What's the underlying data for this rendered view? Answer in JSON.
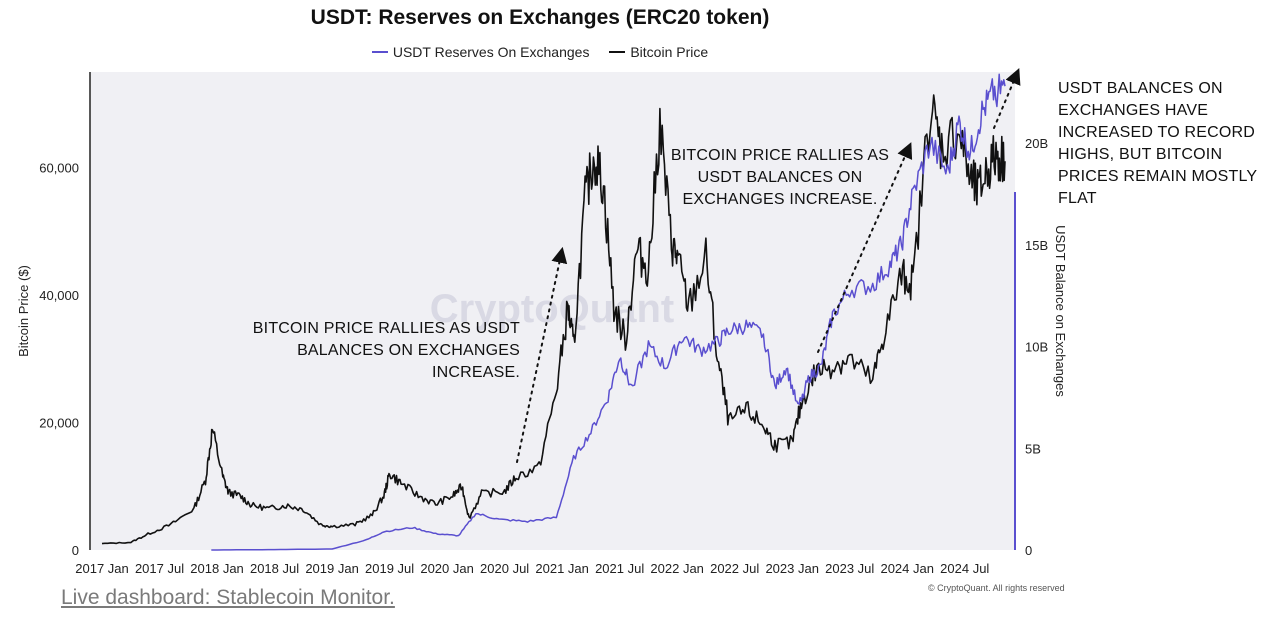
{
  "chart_data": {
    "type": "line",
    "title": "USDT: Reserves on Exchanges (ERC20 token)",
    "legend": [
      {
        "name": "USDT Reserves On Exchanges",
        "color": "#5a4fcf"
      },
      {
        "name": "Bitcoin Price",
        "color": "#111111"
      }
    ],
    "xlabel": "",
    "ylabel_left": "Bitcoin Price ($)",
    "ylabel_right": "USDT Balance on Exchanges",
    "x_ticks": [
      "2017 Jan",
      "2017 Jul",
      "2018 Jan",
      "2018 Jul",
      "2019 Jan",
      "2019 Jul",
      "2020 Jan",
      "2020 Jul",
      "2021 Jan",
      "2021 Jul",
      "2022 Jan",
      "2022 Jul",
      "2023 Jan",
      "2023 Jul",
      "2024 Jan",
      "2024 Jul"
    ],
    "y_left_ticks": [
      "0",
      "20,000",
      "40,000",
      "60,000"
    ],
    "y_right_ticks": [
      "0",
      "5B",
      "10B",
      "15B",
      "20B"
    ],
    "y_left_range": [
      0,
      75000
    ],
    "y_right_range": [
      0,
      23.5
    ],
    "x_range": [
      2017.0,
      2024.85
    ],
    "watermark": "CryptoQuant",
    "series": [
      {
        "name": "Bitcoin Price",
        "axis": "left",
        "color": "#111111",
        "points": [
          [
            2017.0,
            1000
          ],
          [
            2017.25,
            1200
          ],
          [
            2017.4,
            2500
          ],
          [
            2017.6,
            4000
          ],
          [
            2017.8,
            6500
          ],
          [
            2017.9,
            11000
          ],
          [
            2017.96,
            19000
          ],
          [
            2018.05,
            11500
          ],
          [
            2018.1,
            9000
          ],
          [
            2018.2,
            8500
          ],
          [
            2018.3,
            7000
          ],
          [
            2018.45,
            6500
          ],
          [
            2018.6,
            7000
          ],
          [
            2018.75,
            6400
          ],
          [
            2018.9,
            4000
          ],
          [
            2019.0,
            3700
          ],
          [
            2019.2,
            4000
          ],
          [
            2019.35,
            5500
          ],
          [
            2019.45,
            8500
          ],
          [
            2019.5,
            12000
          ],
          [
            2019.6,
            10500
          ],
          [
            2019.75,
            8500
          ],
          [
            2019.9,
            7200
          ],
          [
            2020.05,
            8500
          ],
          [
            2020.13,
            10000
          ],
          [
            2020.19,
            5000
          ],
          [
            2020.3,
            8800
          ],
          [
            2020.5,
            9200
          ],
          [
            2020.6,
            11500
          ],
          [
            2020.8,
            13000
          ],
          [
            2020.95,
            25000
          ],
          [
            2021.05,
            38000
          ],
          [
            2021.1,
            32000
          ],
          [
            2021.2,
            55000
          ],
          [
            2021.28,
            62000
          ],
          [
            2021.36,
            57000
          ],
          [
            2021.45,
            38000
          ],
          [
            2021.55,
            33000
          ],
          [
            2021.65,
            47000
          ],
          [
            2021.75,
            44000
          ],
          [
            2021.85,
            67000
          ],
          [
            2021.95,
            48000
          ],
          [
            2022.0,
            46000
          ],
          [
            2022.1,
            38000
          ],
          [
            2022.25,
            46000
          ],
          [
            2022.35,
            30000
          ],
          [
            2022.45,
            20000
          ],
          [
            2022.6,
            22000
          ],
          [
            2022.75,
            19500
          ],
          [
            2022.85,
            16500
          ],
          [
            2023.0,
            16800
          ],
          [
            2023.08,
            23000
          ],
          [
            2023.2,
            28000
          ],
          [
            2023.35,
            29000
          ],
          [
            2023.5,
            30000
          ],
          [
            2023.7,
            26500
          ],
          [
            2023.8,
            34000
          ],
          [
            2023.95,
            43000
          ],
          [
            2024.05,
            42000
          ],
          [
            2024.2,
            70000
          ],
          [
            2024.3,
            63000
          ],
          [
            2024.45,
            66000
          ],
          [
            2024.55,
            58000
          ],
          [
            2024.62,
            56000
          ],
          [
            2024.7,
            60000
          ],
          [
            2024.78,
            62000
          ],
          [
            2024.85,
            61000
          ]
        ]
      },
      {
        "name": "USDT Reserves On Exchanges",
        "axis": "right",
        "color": "#5a4fcf",
        "points": [
          [
            2017.95,
            0.0
          ],
          [
            2018.5,
            0.02
          ],
          [
            2019.0,
            0.05
          ],
          [
            2019.3,
            0.5
          ],
          [
            2019.45,
            0.9
          ],
          [
            2019.7,
            1.1
          ],
          [
            2019.9,
            0.8
          ],
          [
            2020.1,
            0.7
          ],
          [
            2020.25,
            1.8
          ],
          [
            2020.45,
            1.5
          ],
          [
            2020.7,
            1.4
          ],
          [
            2020.95,
            1.6
          ],
          [
            2021.1,
            4.5
          ],
          [
            2021.25,
            5.8
          ],
          [
            2021.4,
            7.5
          ],
          [
            2021.5,
            9.5
          ],
          [
            2021.6,
            8.0
          ],
          [
            2021.75,
            10.0
          ],
          [
            2021.9,
            9.0
          ],
          [
            2022.05,
            10.5
          ],
          [
            2022.2,
            9.8
          ],
          [
            2022.35,
            10.2
          ],
          [
            2022.45,
            10.8
          ],
          [
            2022.6,
            11.0
          ],
          [
            2022.75,
            10.6
          ],
          [
            2022.85,
            8.0
          ],
          [
            2022.95,
            9.0
          ],
          [
            2023.05,
            7.0
          ],
          [
            2023.15,
            8.5
          ],
          [
            2023.25,
            9.0
          ],
          [
            2023.35,
            11.5
          ],
          [
            2023.5,
            12.8
          ],
          [
            2023.7,
            13.0
          ],
          [
            2023.85,
            14.0
          ],
          [
            2023.95,
            15.0
          ],
          [
            2024.05,
            17.5
          ],
          [
            2024.2,
            20.0
          ],
          [
            2024.35,
            18.5
          ],
          [
            2024.45,
            21.0
          ],
          [
            2024.55,
            19.5
          ],
          [
            2024.65,
            21.5
          ],
          [
            2024.75,
            22.5
          ],
          [
            2024.85,
            22.8
          ]
        ]
      }
    ]
  },
  "annotations": [
    "BITCOIN PRICE RALLIES AS USDT BALANCES ON EXCHANGES INCREASE.",
    "BITCOIN PRICE RALLIES AS USDT BALANCES ON EXCHANGES INCREASE.",
    "USDT BALANCES ON EXCHANGES HAVE INCREASED TO RECORD HIGHS, BUT BITCOIN PRICES REMAIN MOSTLY FLAT"
  ],
  "footer": {
    "link": "Live dashboard: Stablecoin Monitor.",
    "copyright": "© CryptoQuant. All rights reserved"
  },
  "colors": {
    "plot_bg": "#f0f0f4",
    "btc": "#111111",
    "usdt": "#5a4fcf"
  }
}
